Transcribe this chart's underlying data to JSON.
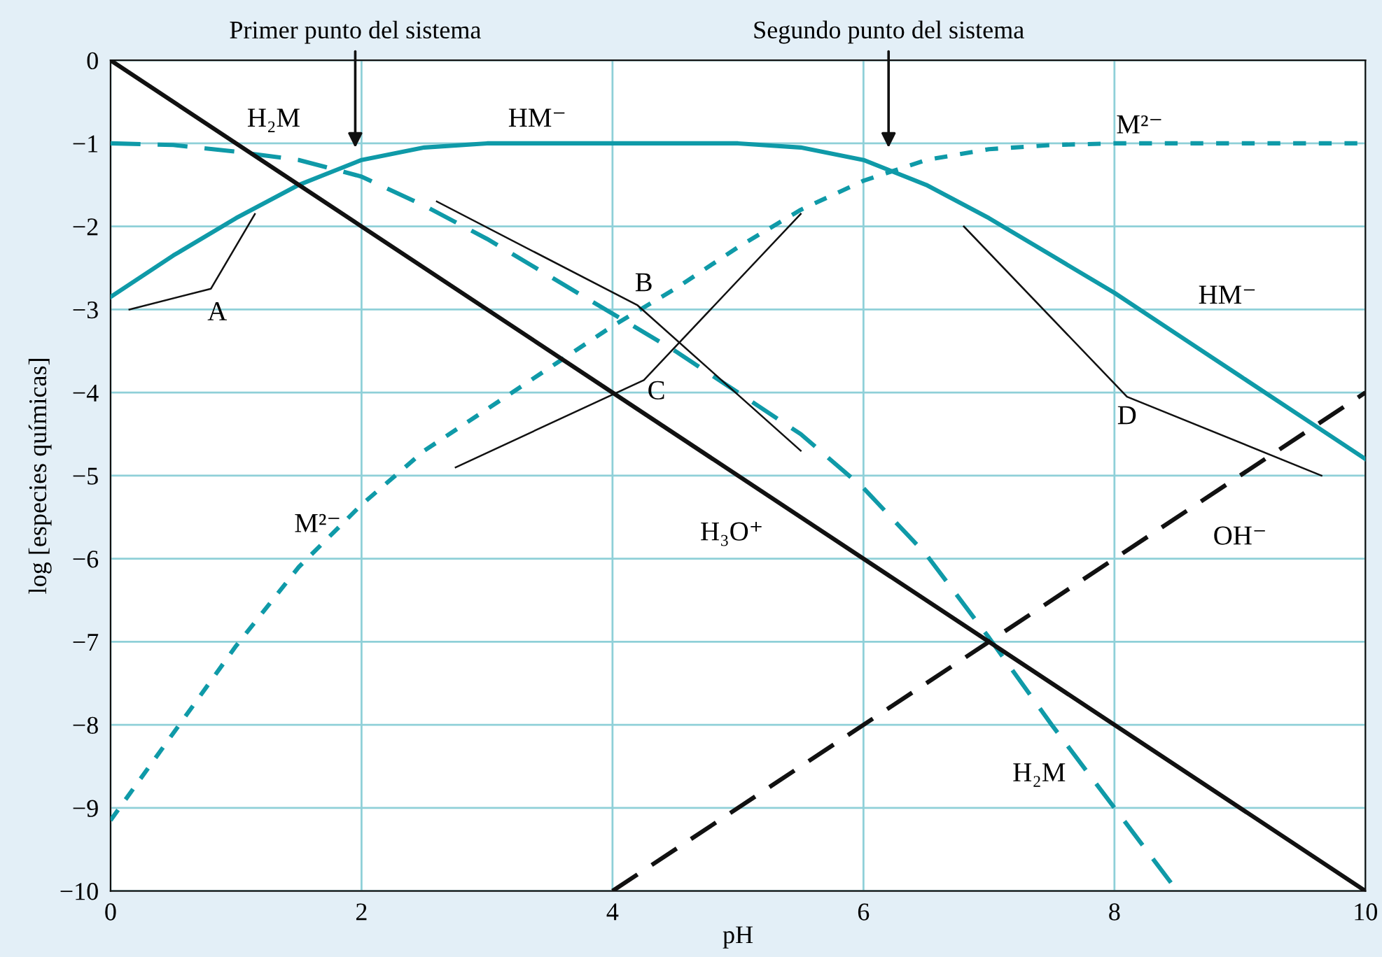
{
  "chart_data": {
    "type": "line",
    "xlabel": "pH",
    "ylabel": "log [especies químicas]",
    "xlim": [
      0,
      10
    ],
    "ylim": [
      -10,
      0
    ],
    "xticks": [
      0,
      2,
      4,
      6,
      8,
      10
    ],
    "yticks": [
      0,
      {
        "value": -1,
        "label": "−1"
      },
      {
        "value": -2,
        "label": "−2"
      },
      {
        "value": -3,
        "label": "−3"
      },
      {
        "value": -4,
        "label": "−4"
      },
      {
        "value": -5,
        "label": "−5"
      },
      {
        "value": -6,
        "label": "−6"
      },
      {
        "value": -7,
        "label": "−7"
      },
      {
        "value": -8,
        "label": "−8"
      },
      {
        "value": -9,
        "label": "−9"
      },
      {
        "value": -10,
        "label": "−10"
      }
    ],
    "grid": true,
    "legend": false,
    "marker": "none",
    "series": [
      {
        "color": "#0f9aa8",
        "line_style": "solid",
        "x": [
          0,
          0.5,
          1,
          1.5,
          2,
          2.5,
          3,
          5,
          5.5,
          6,
          6.5,
          7,
          7.5,
          8,
          8.5,
          9,
          9.5,
          10
        ],
        "values": [
          -2.85,
          -2.35,
          -1.9,
          -1.5,
          -1.2,
          -1.05,
          -1.0,
          -1.0,
          -1.05,
          -1.2,
          -1.5,
          -1.9,
          -2.35,
          -2.8,
          -3.3,
          -3.8,
          -4.3,
          -4.8
        ]
      },
      {
        "color": "#0f9aa8",
        "line_style": "dashed",
        "x": [
          0,
          0.5,
          1,
          1.5,
          2,
          2.5,
          3,
          3.5,
          4,
          4.5,
          5,
          5.5,
          6,
          6.5,
          7,
          7.5,
          8,
          8.5
        ],
        "values": [
          -1.0,
          -1.02,
          -1.1,
          -1.2,
          -1.4,
          -1.75,
          -2.15,
          -2.6,
          -3.05,
          -3.5,
          -4.0,
          -4.5,
          -5.15,
          -5.95,
          -6.95,
          -8.0,
          -9.0,
          -10.0
        ]
      },
      {
        "color": "#0f9aa8",
        "line_style": "dotted",
        "x": [
          0,
          0.5,
          1,
          1.5,
          2,
          2.5,
          3,
          3.5,
          4,
          4.5,
          5,
          5.5,
          6,
          6.5,
          7,
          7.5,
          8,
          10
        ],
        "values": [
          -9.15,
          -8.1,
          -7.05,
          -6.1,
          -5.35,
          -4.7,
          -4.2,
          -3.7,
          -3.2,
          -2.75,
          -2.25,
          -1.8,
          -1.45,
          -1.2,
          -1.07,
          -1.02,
          -1.0,
          -1.0
        ]
      },
      {
        "color": "#111111",
        "line_style": "solid",
        "x": [
          0,
          10
        ],
        "values": [
          0,
          -10
        ]
      },
      {
        "color": "#111111",
        "line_style": "dashed",
        "x": [
          4,
          10
        ],
        "values": [
          -10,
          -4
        ]
      }
    ],
    "annotations": [
      "Primer punto del sistema",
      "Segundo punto del sistema",
      "H₂M",
      "HM⁻",
      "M²⁻",
      "HM⁻",
      "M²⁻",
      "H₃O⁺",
      "OH⁻",
      "H₂M",
      "A",
      "B",
      "C",
      "D"
    ]
  }
}
